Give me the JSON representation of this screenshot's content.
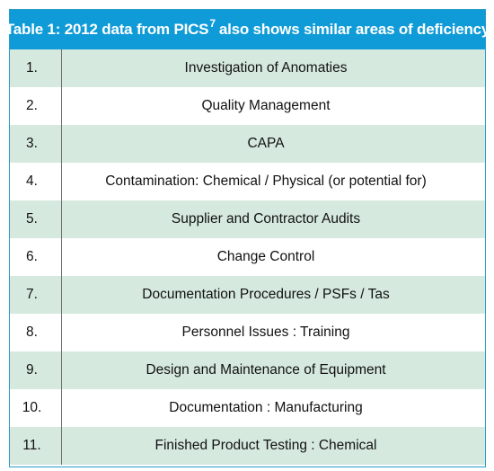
{
  "table": {
    "title_main": "Table 1:  2012 data from PICS",
    "title_sup": "7",
    "title_rest": "also shows similar areas of deficiency",
    "rows": [
      {
        "num": "1.",
        "item": "Investigation of Anomaties"
      },
      {
        "num": "2.",
        "item": "Quality Management"
      },
      {
        "num": "3.",
        "item": "CAPA"
      },
      {
        "num": "4.",
        "item": "Contamination: Chemical / Physical (or potential for)"
      },
      {
        "num": "5.",
        "item": "Supplier and Contractor Audits"
      },
      {
        "num": "6.",
        "item": "Change Control"
      },
      {
        "num": "7.",
        "item": "Documentation Procedures / PSFs / Tas"
      },
      {
        "num": "8.",
        "item": "Personnel Issues : Training"
      },
      {
        "num": "9.",
        "item": "Design and Maintenance of Equipment"
      },
      {
        "num": "10.",
        "item": "Documentation : Manufacturing"
      },
      {
        "num": "11.",
        "item": "Finished Product Testing : Chemical"
      }
    ]
  },
  "colors": {
    "header_bg": "#0f9bd7",
    "shaded_row_bg": "#d6e9df",
    "border": "#2a9bc8"
  }
}
